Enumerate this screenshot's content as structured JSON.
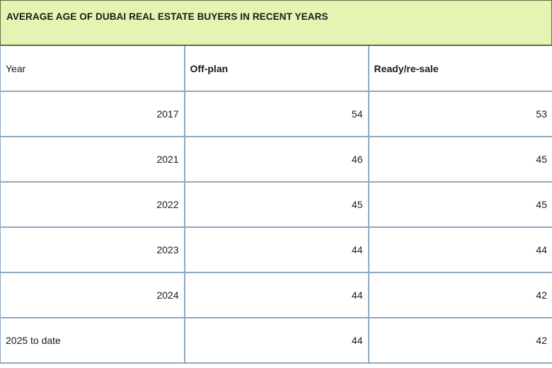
{
  "chart_data": {
    "type": "table",
    "title": "AVERAGE AGE OF DUBAI REAL ESTATE BUYERS IN RECENT YEARS",
    "columns": [
      "Year",
      "Off-plan",
      "Ready/re-sale"
    ],
    "rows": [
      {
        "year": "2017",
        "off_plan": "54",
        "ready": "53"
      },
      {
        "year": "2021",
        "off_plan": "46",
        "ready": "45"
      },
      {
        "year": "2022",
        "off_plan": "45",
        "ready": "45"
      },
      {
        "year": "2023",
        "off_plan": "44",
        "ready": "44"
      },
      {
        "year": "2024",
        "off_plan": "44",
        "ready": "42"
      },
      {
        "year": "2025 to date",
        "off_plan": "44",
        "ready": "42"
      }
    ]
  },
  "colors": {
    "title_band": "#e5f4b3",
    "grid_line": "#8ea9c1",
    "title_border": "#5f6d4a"
  }
}
